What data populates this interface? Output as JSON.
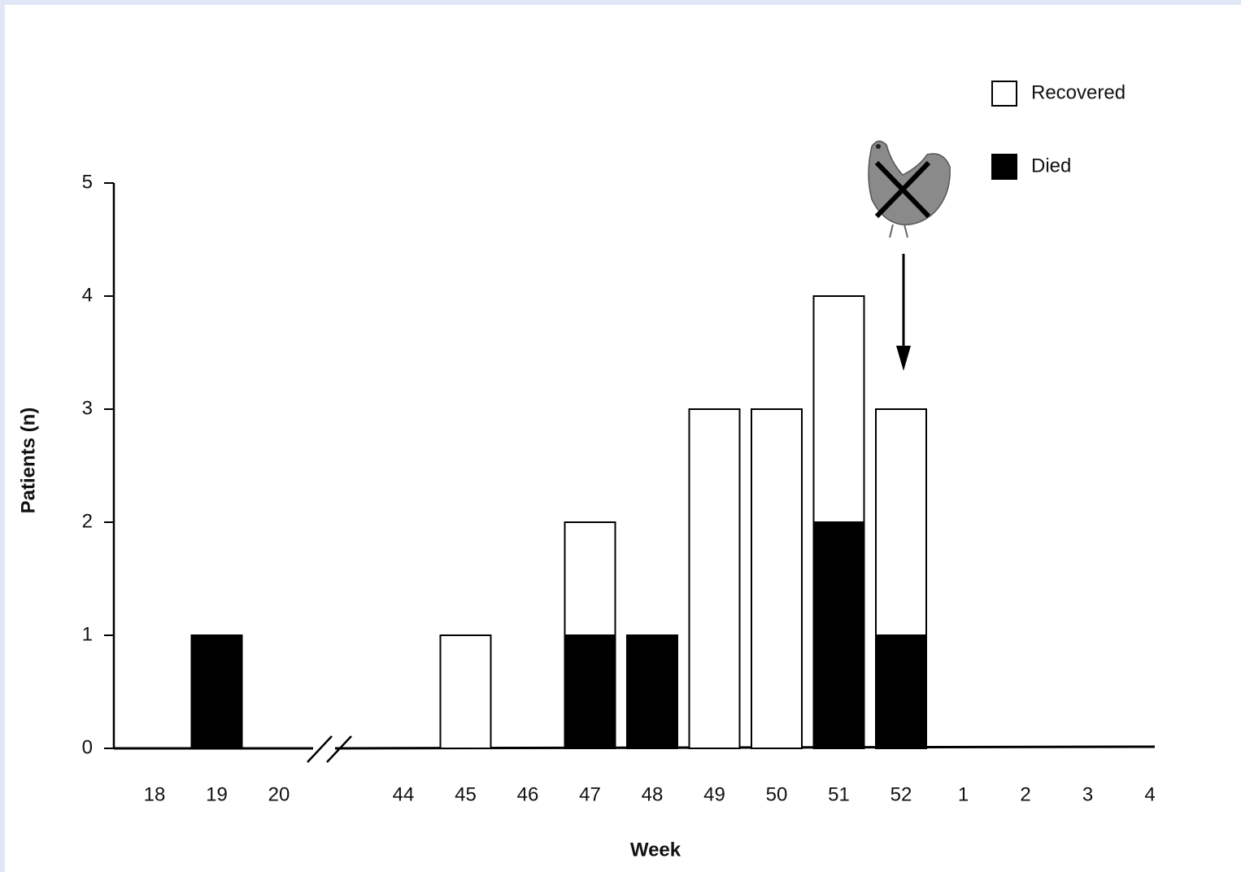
{
  "chart_data": {
    "type": "bar",
    "stacked": true,
    "xlabel": "Week",
    "ylabel": "Patients (n)",
    "categories": [
      "18",
      "19",
      "20",
      null,
      "44",
      "45",
      "46",
      "47",
      "48",
      "49",
      "50",
      "51",
      "52",
      "1",
      "2",
      "3",
      "4"
    ],
    "series": [
      {
        "name": "Died",
        "color": "#000000",
        "values": [
          0,
          1,
          0,
          null,
          0,
          0,
          0,
          1,
          1,
          0,
          0,
          2,
          1,
          0,
          0,
          0,
          0
        ]
      },
      {
        "name": "Recovered",
        "color": "#ffffff",
        "values": [
          0,
          0,
          0,
          null,
          0,
          1,
          0,
          1,
          0,
          3,
          3,
          2,
          2,
          0,
          0,
          0,
          0
        ]
      }
    ],
    "ylim": [
      0,
      5
    ],
    "yticks": [
      0,
      1,
      2,
      3,
      4,
      5
    ]
  }
}
